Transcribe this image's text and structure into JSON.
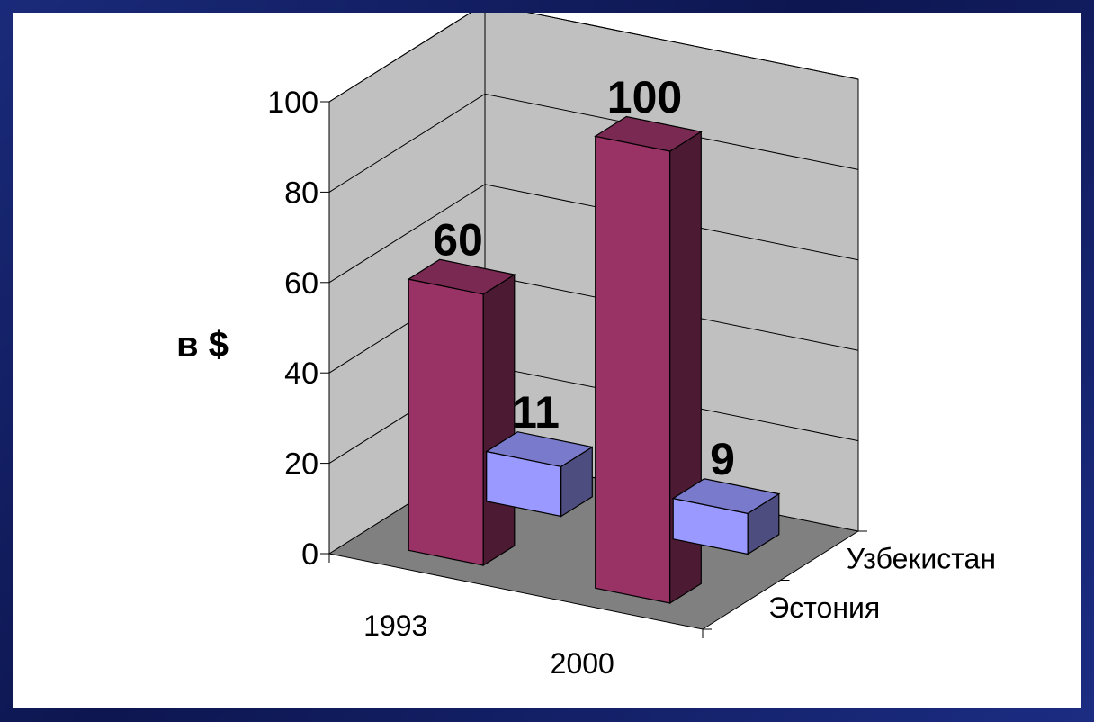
{
  "chart_data": {
    "type": "bar",
    "subtype": "3d-column",
    "categories": [
      "1993",
      "2000"
    ],
    "series": [
      {
        "name": "Узбекистан",
        "values": [
          11,
          9
        ],
        "color": "#9999ff"
      },
      {
        "name": "Эстония",
        "values": [
          60,
          100
        ],
        "color": "#993366"
      }
    ],
    "data_labels": [
      "11",
      "9",
      "60",
      "100"
    ],
    "ylabel": "в $",
    "ylim": [
      0,
      100
    ],
    "yticks": [
      "0",
      "20",
      "40",
      "60",
      "80",
      "100"
    ],
    "grid": true,
    "legend": "series names along depth axis (right)"
  },
  "colors": {
    "background": "#101a5e",
    "plot_wall": "#c0c0c0",
    "plot_floor": "#808080"
  }
}
